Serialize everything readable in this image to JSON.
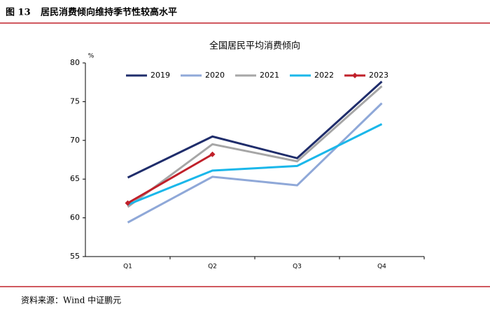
{
  "figure": {
    "label": "图 13",
    "title": "居民消费倾向维持季节性较高水平",
    "source": "资料来源：Wind  中证鹏元"
  },
  "chart_data": {
    "type": "line",
    "title": "全国居民平均消费倾向",
    "y_unit": "%",
    "categories": [
      "Q1",
      "Q2",
      "Q3",
      "Q4"
    ],
    "series": [
      {
        "name": "2019",
        "color": "#1f2d6b",
        "values": [
          65.2,
          70.5,
          67.7,
          77.6
        ]
      },
      {
        "name": "2020",
        "color": "#8fa8d8",
        "values": [
          59.4,
          65.3,
          64.2,
          74.8
        ]
      },
      {
        "name": "2021",
        "color": "#a6a6a6",
        "values": [
          61.4,
          69.5,
          67.3,
          77.0
        ]
      },
      {
        "name": "2022",
        "color": "#1ab7ea",
        "values": [
          61.7,
          66.1,
          66.7,
          72.1
        ]
      },
      {
        "name": "2023",
        "color": "#c0202a",
        "marker": "diamond",
        "values": [
          61.9,
          68.2,
          null,
          null
        ]
      }
    ],
    "ylim": [
      55,
      80
    ],
    "yticks": [
      55,
      60,
      65,
      70,
      75,
      80
    ],
    "grid": false,
    "legend": "top"
  }
}
